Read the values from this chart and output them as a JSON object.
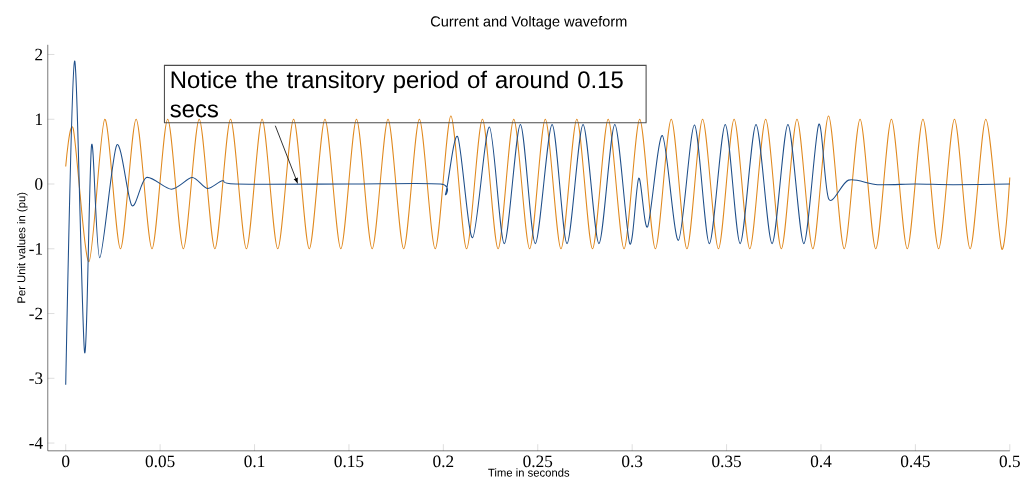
{
  "chart_data": {
    "type": "line",
    "title": "Current and Voltage waveform",
    "xlabel": "Time in seconds",
    "ylabel": "Per Unit values in (pu)",
    "xlim": [
      -0.0095,
      0.5
    ],
    "ylim": [
      -4.12,
      2.15
    ],
    "xticks": [
      0,
      0.05,
      0.1,
      0.15,
      0.2,
      0.25,
      0.3,
      0.35,
      0.4,
      0.45,
      0.5
    ],
    "yticks": [
      -4,
      -3,
      -2,
      -1,
      0,
      1,
      2
    ],
    "annotations": [
      {
        "text": "Notice the transitory period of around 0.15 secs",
        "x": 0.123,
        "y": 0
      }
    ],
    "series": [
      {
        "color": "#e0891f",
        "x": [
          0,
          0.004,
          0.0123,
          0.0207,
          0.029,
          0.0373,
          0.0457,
          0.054,
          0.0623,
          0.0707,
          0.079,
          0.0873,
          0.0957,
          0.104,
          0.1123,
          0.1207,
          0.129,
          0.1373,
          0.1457,
          0.154,
          0.1623,
          0.1707,
          0.179,
          0.1873,
          0.1957,
          0.204,
          0.2123,
          0.2207,
          0.229,
          0.2373,
          0.2457,
          0.254,
          0.2623,
          0.2707,
          0.279,
          0.2873,
          0.2957,
          0.304,
          0.3123,
          0.3207,
          0.329,
          0.3373,
          0.3457,
          0.354,
          0.3623,
          0.3707,
          0.379,
          0.3873,
          0.3957,
          0.404,
          0.4123,
          0.4207,
          0.429,
          0.4373,
          0.4457,
          0.454,
          0.4623,
          0.4707,
          0.479,
          0.4873,
          0.4957,
          0.5
        ],
        "values": [
          0.27,
          0.85,
          -1.2,
          1,
          -1,
          1,
          -1,
          1,
          -1,
          1,
          -1,
          1,
          -1,
          1,
          -1,
          1,
          -1,
          1,
          -1,
          1,
          -1,
          1,
          -1,
          1,
          -1,
          1.05,
          -1,
          1,
          -1,
          1,
          -1,
          1,
          -1,
          1,
          -1,
          1,
          -1,
          1,
          -1,
          1,
          -1,
          1,
          -1,
          1,
          -1,
          1,
          -1,
          1,
          -1,
          1.05,
          -1,
          1,
          -1,
          1,
          -1,
          1,
          -1,
          1,
          -1,
          1,
          -1,
          0.1
        ]
      },
      {
        "color": "#1f4f8a",
        "x": [
          0,
          0.0047,
          0.01,
          0.0137,
          0.018,
          0.027,
          0.035,
          0.0427,
          0.056,
          0.067,
          0.075,
          0.083,
          0.09,
          0.15,
          0.1985,
          0.2013,
          0.2076,
          0.2155,
          0.2244,
          0.2323,
          0.2408,
          0.2487,
          0.2576,
          0.2655,
          0.274,
          0.2824,
          0.2908,
          0.2987,
          0.3035,
          0.3082,
          0.316,
          0.3245,
          0.333,
          0.3409,
          0.3493,
          0.3572,
          0.3656,
          0.3741,
          0.3825,
          0.3909,
          0.3988,
          0.4041,
          0.4146,
          0.43,
          0.45,
          0.47,
          0.5
        ],
        "values": [
          -3.1,
          1.9,
          -2.6,
          0.6,
          -1.14,
          0.6,
          -0.33,
          0.1,
          -0.08,
          0.1,
          -0.07,
          0.05,
          0,
          0,
          0,
          -0.14,
          0.73,
          -0.83,
          0.88,
          -0.92,
          0.92,
          -0.92,
          0.92,
          -0.92,
          0.92,
          -0.92,
          0.92,
          -0.92,
          0.09,
          -0.66,
          0.75,
          -0.87,
          0.91,
          -0.92,
          0.92,
          -0.92,
          0.92,
          -0.92,
          0.92,
          -0.92,
          0.92,
          -0.23,
          0.06,
          -0.01,
          0,
          -0.01,
          0
        ]
      }
    ]
  }
}
